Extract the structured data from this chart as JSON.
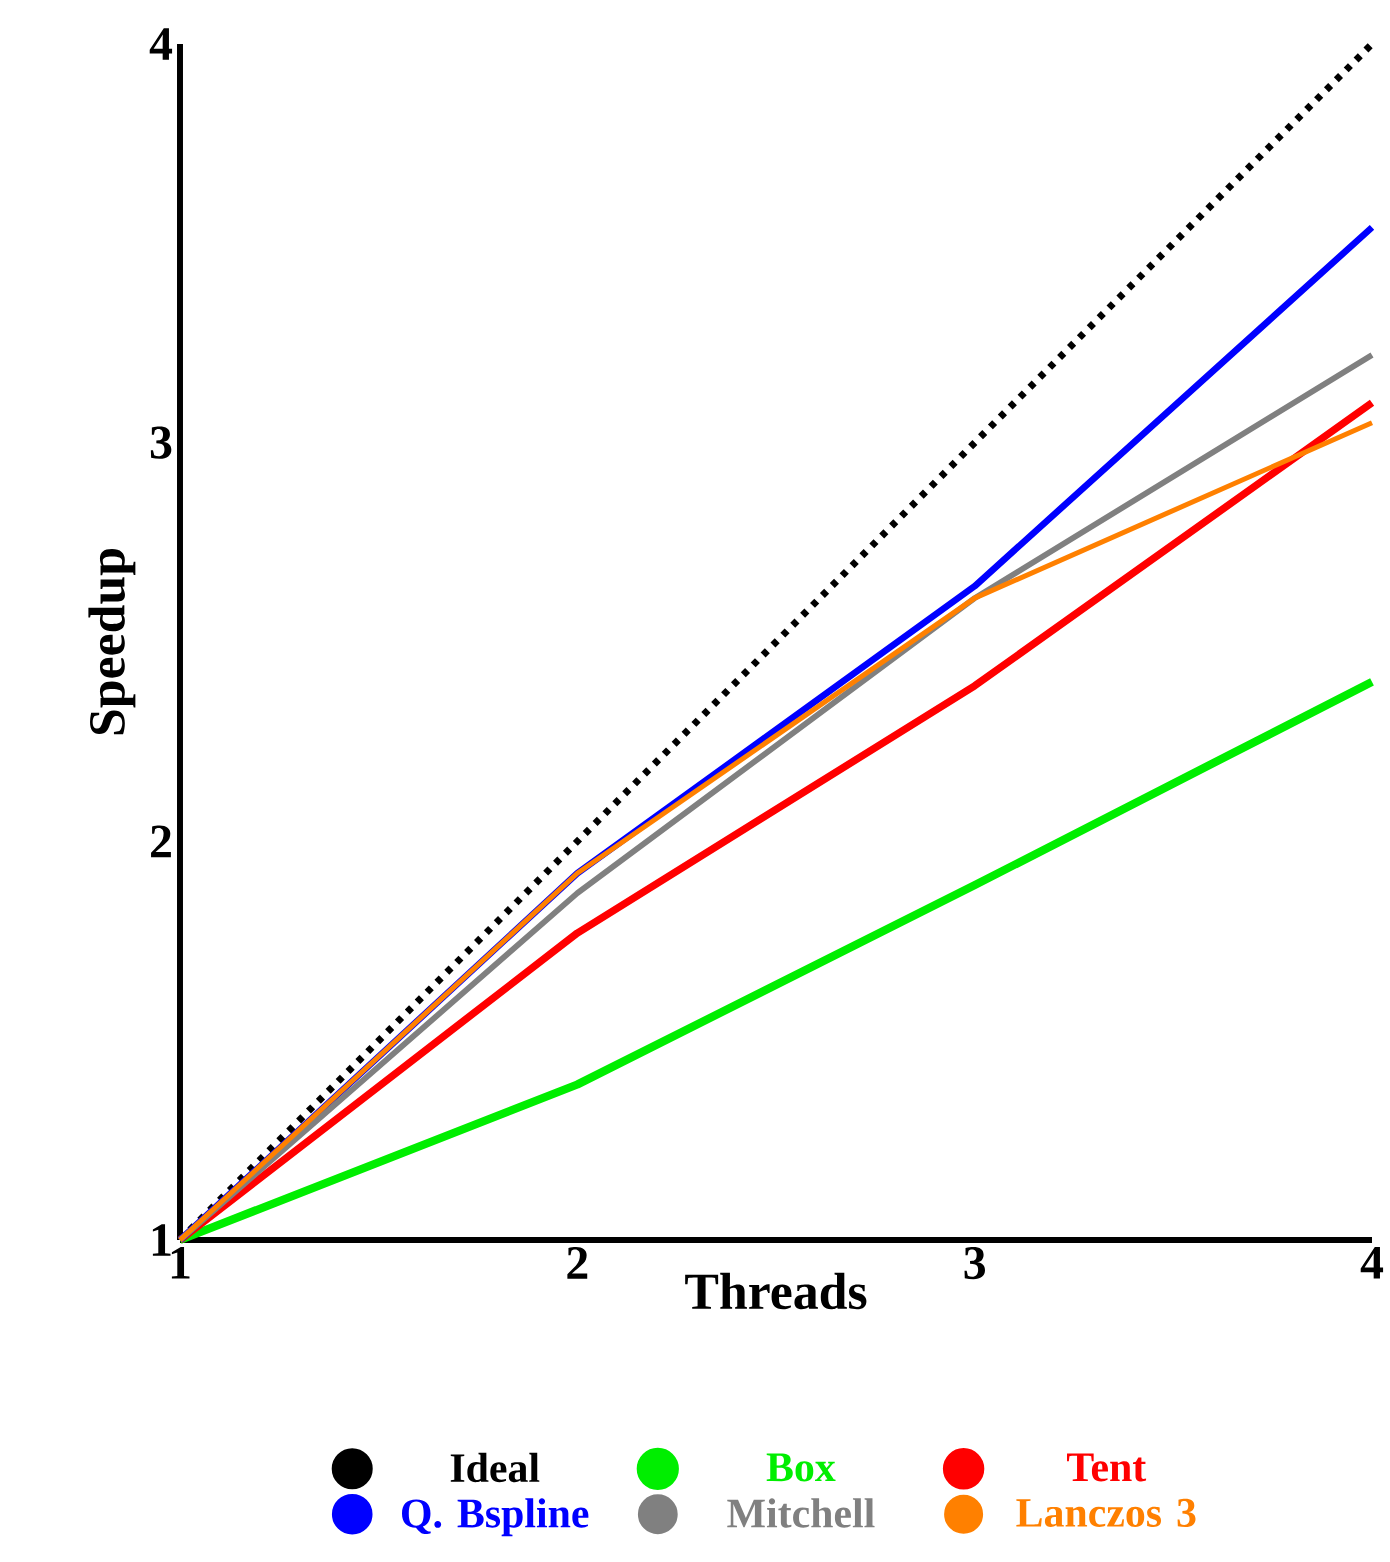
{
  "chart_data": {
    "type": "line",
    "xlabel": "Threads",
    "ylabel": "Speedup",
    "x": [
      1,
      2,
      3,
      4
    ],
    "xlim": [
      1,
      4
    ],
    "ylim": [
      1,
      4
    ],
    "xticks": [
      1,
      2,
      3,
      4
    ],
    "yticks": [
      1,
      2,
      3,
      4
    ],
    "grid": false,
    "legend": "bottom",
    "marker": "none",
    "series": [
      {
        "name": "Ideal",
        "color": "#000000",
        "line_style": "dotted",
        "values": [
          1,
          2,
          3,
          4
        ]
      },
      {
        "name": "Box",
        "color": "#00ee00",
        "line_style": "solid",
        "values": [
          1,
          1.39,
          1.89,
          2.4
        ]
      },
      {
        "name": "Tent",
        "color": "#ff0000",
        "line_style": "solid",
        "values": [
          1,
          1.77,
          2.39,
          3.1
        ]
      },
      {
        "name": "Q. Bspline",
        "color": "#0000ff",
        "line_style": "solid",
        "values": [
          1,
          1.92,
          2.64,
          3.54
        ]
      },
      {
        "name": "Mitchell",
        "color": "#808080",
        "line_style": "solid",
        "values": [
          1,
          1.87,
          2.61,
          3.22
        ]
      },
      {
        "name": "Lanczos 3",
        "color": "#ff8000",
        "line_style": "solid",
        "values": [
          1,
          1.92,
          2.61,
          3.05
        ]
      }
    ]
  }
}
